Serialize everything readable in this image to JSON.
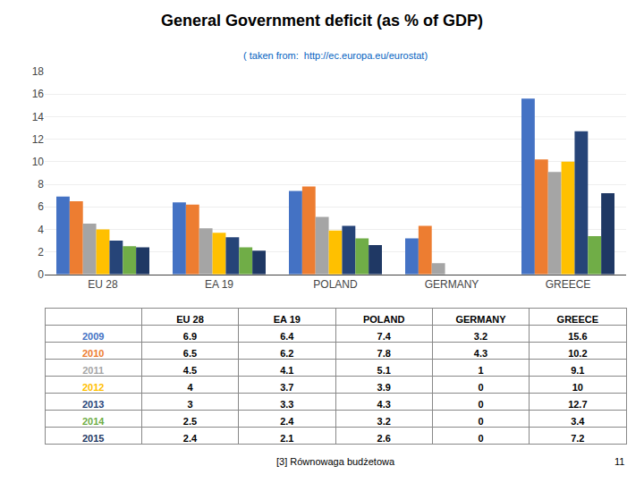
{
  "chart_data": {
    "type": "bar",
    "title": "General Government deficit (as % of GDP)",
    "subtitle": "( taken from:  http://ec.europa.eu/eurostat)",
    "categories": [
      "EU 28",
      "EA 19",
      "POLAND",
      "GERMANY",
      "GREECE"
    ],
    "series": [
      {
        "name": "2009",
        "color": "#4472C4",
        "values": [
          6.9,
          6.4,
          7.4,
          3.2,
          15.6
        ]
      },
      {
        "name": "2010",
        "color": "#ED7D31",
        "values": [
          6.5,
          6.2,
          7.8,
          4.3,
          10.2
        ]
      },
      {
        "name": "2011",
        "color": "#A5A5A5",
        "values": [
          4.5,
          4.1,
          5.1,
          1.0,
          9.1
        ]
      },
      {
        "name": "2012",
        "color": "#FFC000",
        "values": [
          4.0,
          3.7,
          3.9,
          0.0,
          10.0
        ]
      },
      {
        "name": "2013",
        "color": "#264478",
        "values": [
          3.0,
          3.3,
          4.3,
          0.0,
          12.7
        ]
      },
      {
        "name": "2014",
        "color": "#70AD47",
        "values": [
          2.5,
          2.4,
          3.2,
          0.0,
          3.4
        ]
      },
      {
        "name": "2015",
        "color": "#1F3864",
        "values": [
          2.4,
          2.1,
          2.6,
          0.0,
          7.2
        ]
      }
    ],
    "ylim": [
      0,
      18
    ],
    "yticks": [
      0,
      2,
      4,
      6,
      8,
      10,
      12,
      14,
      16,
      18
    ],
    "grid": true,
    "annotations": [
      "[3] Równowaga budżetowa",
      "11"
    ]
  }
}
